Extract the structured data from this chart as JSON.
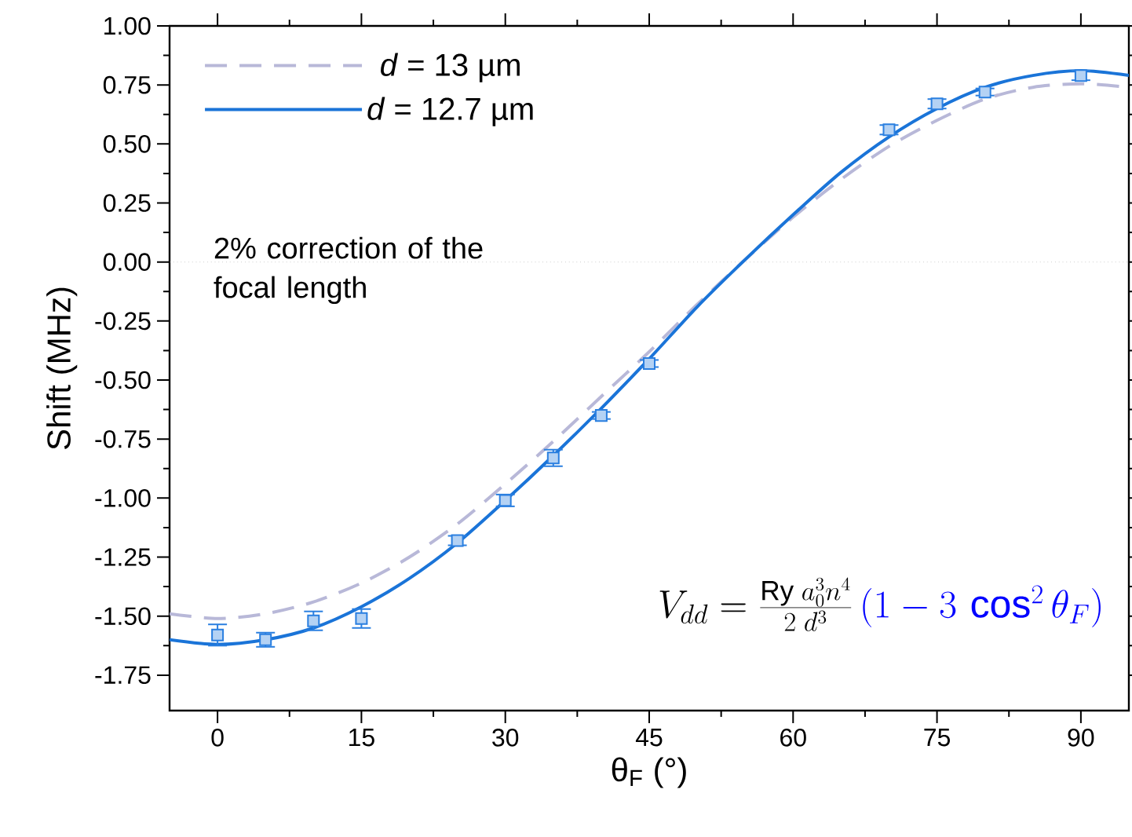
{
  "chart_data": {
    "type": "line",
    "xlabel": "θ$_{F}$ (°)",
    "ylabel": "Shift (MHz)",
    "xlim": [
      -5,
      95
    ],
    "ylim": [
      -1.9,
      1.0
    ],
    "xticks": [
      0,
      15,
      30,
      45,
      60,
      75,
      90
    ],
    "yticks": [
      {
        "value": -1.75,
        "label": "-1.75"
      },
      {
        "value": -1.5,
        "label": "-1.50"
      },
      {
        "value": -1.25,
        "label": "-1.25"
      },
      {
        "value": -1.0,
        "label": "-1.00"
      },
      {
        "value": -0.75,
        "label": "-0.75"
      },
      {
        "value": -0.5,
        "label": "-0.50"
      },
      {
        "value": -0.25,
        "label": "-0.25"
      },
      {
        "value": 0,
        "label": "0.00"
      },
      {
        "value": 0.25,
        "label": "0.25"
      },
      {
        "value": 0.5,
        "label": "0.50"
      },
      {
        "value": 0.75,
        "label": "0.75"
      },
      {
        "value": 1.0,
        "label": "1.00"
      }
    ],
    "legend": "top left",
    "grid": false,
    "series": [
      {
        "name": "*d* = 13 µm",
        "color": "#b8b8d8",
        "line_style": "dashed",
        "marker": "none",
        "x": [
          -5,
          0,
          5,
          10,
          15,
          20,
          25,
          30,
          35,
          40,
          45,
          50,
          55,
          60,
          65,
          70,
          75,
          80,
          85,
          90,
          95
        ],
        "values": [
          -1.49,
          -1.51,
          -1.49,
          -1.44,
          -1.36,
          -1.25,
          -1.11,
          -0.94,
          -0.76,
          -0.57,
          -0.38,
          -0.18,
          0.01,
          0.19,
          0.35,
          0.49,
          0.6,
          0.69,
          0.74,
          0.755,
          0.74
        ]
      },
      {
        "name": "*d* = 12.7 µm",
        "color": "#1a74d8",
        "line_style": "solid",
        "marker": "none",
        "x": [
          -5,
          0,
          5,
          10,
          15,
          20,
          25,
          30,
          35,
          40,
          45,
          50,
          55,
          60,
          65,
          70,
          75,
          80,
          85,
          90,
          95
        ],
        "values": [
          -1.6,
          -1.62,
          -1.6,
          -1.55,
          -1.46,
          -1.34,
          -1.19,
          -1.01,
          -0.82,
          -0.62,
          -0.41,
          -0.19,
          0.01,
          0.2,
          0.38,
          0.53,
          0.65,
          0.74,
          0.79,
          0.81,
          0.79
        ]
      },
      {
        "type": "scatter",
        "color": "#2a7fe0",
        "marker": "square",
        "x": [
          0,
          5,
          10,
          15,
          25,
          30,
          35,
          40,
          45,
          70,
          75,
          80,
          90
        ],
        "values": [
          -1.58,
          -1.6,
          -1.52,
          -1.51,
          -1.18,
          -1.01,
          -0.83,
          -0.65,
          -0.43,
          0.56,
          0.67,
          0.72,
          0.79
        ],
        "errors": [
          0.045,
          0.03,
          0.04,
          0.04,
          0.02,
          0.025,
          0.035,
          0.015,
          0.015,
          0.02,
          0.02,
          0.015,
          0.02
        ]
      }
    ],
    "ref_lines": [
      {
        "axis": "y",
        "value": 0,
        "color": "#a0a0a0",
        "line_style": "dotted"
      }
    ],
    "annotations": [
      "2% correction of the focal length",
      "V_{dd} = \\frac{\\mathrm{Ry}\\; a_0^3 n^4}{2\\; d^3}",
      "(1 - 3\\,\\cos^2\\theta_F)"
    ]
  }
}
